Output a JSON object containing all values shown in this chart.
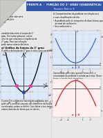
{
  "bg_color": "#e8e8e8",
  "page_color": "#f5f5f0",
  "header_color": "#3355aa",
  "header_text_color": "#ffffff",
  "text_color": "#111111",
  "red_text": "#cc2222",
  "blue_text": "#2222cc",
  "pink_point": "#dd44aa",
  "blue_point": "#3344bb",
  "graph1_bg": "#dde8f8",
  "graph2_bg": "#dde8f8",
  "graph3_bg": "#f8dde0",
  "parabola1_color": "#111111",
  "parabola2_color": "#4466cc",
  "parabola3_color": "#cc2222",
  "fold_color": "#cccccc",
  "header_line1": "FRENTE A  –  FUNÇÃO DO 2° GRAU (QUADRÁTICA)",
  "header_line2": "Resumo Teórico 9"
}
